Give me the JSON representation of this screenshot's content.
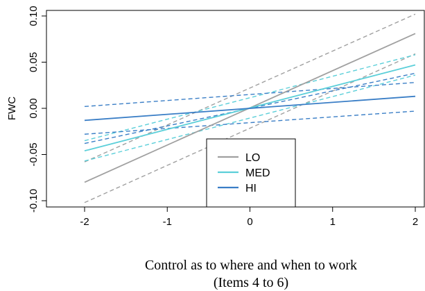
{
  "chart_data": {
    "type": "line",
    "xlabel_lines": [
      "Control as to where and when to work",
      "(Items 4 to 6)"
    ],
    "ylabel": "FWC",
    "xlim": [
      -2.0,
      2.1
    ],
    "ylim": [
      -0.1,
      0.1
    ],
    "xticks": [
      -2,
      -1,
      0,
      1,
      2
    ],
    "yticks": [
      -0.1,
      -0.05,
      0.0,
      0.05,
      0.1
    ],
    "ytick_labels": [
      "-0.10",
      "-0.05",
      "0.00",
      "0.05",
      "0.10"
    ],
    "xtick_labels": [
      "-2",
      "-1",
      "0",
      "1",
      "2"
    ],
    "series": [
      {
        "name": "LO",
        "color": "#a0a0a0",
        "x": [
          -2,
          2
        ],
        "y": [
          -0.08,
          0.081
        ]
      },
      {
        "name": "MED",
        "color": "#5bcfd9",
        "x": [
          -2,
          2
        ],
        "y": [
          -0.046,
          0.047
        ]
      },
      {
        "name": "HI",
        "color": "#3a7ec6",
        "x": [
          -2,
          2
        ],
        "y": [
          -0.013,
          0.013
        ]
      }
    ],
    "bands": [
      {
        "series": "LO",
        "color": "#a0a0a0",
        "x": [
          -2,
          2
        ],
        "lower": [
          -0.102,
          0.059
        ],
        "upper": [
          -0.058,
          0.102
        ]
      },
      {
        "series": "MED",
        "color": "#5bcfd9",
        "x": [
          -2,
          2
        ],
        "lower": [
          -0.057,
          0.036
        ],
        "upper": [
          -0.035,
          0.058
        ]
      },
      {
        "series": "HI",
        "color": "#3a7ec6",
        "x": [
          -2,
          2
        ],
        "lower": [
          -0.028,
          -0.003
        ],
        "upper": [
          0.002,
          0.028
        ]
      }
    ],
    "extra_dashed": [
      {
        "color": "#3a7ec6",
        "x": [
          -2,
          2
        ],
        "y": [
          -0.038,
          0.038
        ]
      }
    ],
    "legend": {
      "placement": "bottom-center",
      "entries": [
        {
          "label": "LO",
          "color": "#a0a0a0"
        },
        {
          "label": "MED",
          "color": "#5bcfd9"
        },
        {
          "label": "HI",
          "color": "#3a7ec6"
        }
      ]
    }
  }
}
